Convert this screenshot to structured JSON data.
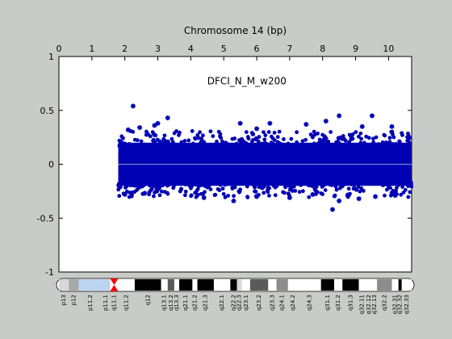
{
  "chart_data": {
    "type": "scatter",
    "title": "Chromosome 14 (bp)",
    "annotation": "DFCI_N_M_w200",
    "xlim": [
      0,
      10.7
    ],
    "ylim": [
      -1,
      1
    ],
    "x_ticks": [
      0,
      1,
      2,
      3,
      4,
      5,
      6,
      7,
      8,
      9,
      10
    ],
    "x_tick_labels": [
      "0",
      "1",
      "2",
      "3",
      "4",
      "5",
      "6",
      "7",
      "8",
      "9",
      "10"
    ],
    "y_ticks": [
      -1,
      -0.5,
      0,
      0.5,
      1
    ],
    "y_tick_labels": [
      "-1",
      "-0.5",
      "0",
      "0.5",
      "1"
    ],
    "grid": false,
    "colors": {
      "points": "#0000b4",
      "zero_line": "#7f9ec8",
      "background": "#c8ccc8",
      "plot_bg": "#ffffff",
      "centromere": "#ff0000",
      "stalk": "#bcd4f0"
    },
    "series": [
      {
        "data_start": 1.8,
        "data_end": 10.7,
        "core_band": [
          -0.2,
          0.2
        ],
        "outliers": [
          {
            "x": 2.25,
            "y": 0.54
          },
          {
            "x": 2.1,
            "y": 0.32
          },
          {
            "x": 2.45,
            "y": 0.34
          },
          {
            "x": 2.9,
            "y": 0.36
          },
          {
            "x": 3.0,
            "y": 0.38
          },
          {
            "x": 3.3,
            "y": 0.43
          },
          {
            "x": 5.5,
            "y": 0.38
          },
          {
            "x": 6.0,
            "y": 0.33
          },
          {
            "x": 6.4,
            "y": 0.38
          },
          {
            "x": 7.5,
            "y": 0.37
          },
          {
            "x": 8.1,
            "y": 0.4
          },
          {
            "x": 8.5,
            "y": 0.45
          },
          {
            "x": 9.2,
            "y": 0.35
          },
          {
            "x": 9.5,
            "y": 0.45
          },
          {
            "x": 10.1,
            "y": 0.35
          },
          {
            "x": 2.0,
            "y": -0.28
          },
          {
            "x": 2.6,
            "y": -0.27
          },
          {
            "x": 4.4,
            "y": -0.31
          },
          {
            "x": 5.3,
            "y": -0.34
          },
          {
            "x": 6.0,
            "y": -0.3
          },
          {
            "x": 7.0,
            "y": -0.31
          },
          {
            "x": 7.7,
            "y": -0.28
          },
          {
            "x": 8.3,
            "y": -0.42
          },
          {
            "x": 8.5,
            "y": -0.34
          },
          {
            "x": 9.1,
            "y": -0.32
          },
          {
            "x": 9.6,
            "y": -0.3
          },
          {
            "x": 10.2,
            "y": -0.29
          }
        ]
      }
    ],
    "ideogram": [
      {
        "label": "p13",
        "start": 0.0,
        "end": 0.3,
        "color": "#d8d8d8"
      },
      {
        "label": "p12",
        "start": 0.3,
        "end": 0.6,
        "color": "#a8a8a8"
      },
      {
        "label": "p11.2",
        "start": 0.6,
        "end": 1.3,
        "color": "#bcd4f0"
      },
      {
        "label": "p11.1",
        "start": 1.3,
        "end": 1.55,
        "color": "#bcd4f0"
      },
      {
        "label": "q11.1",
        "start": 1.55,
        "end": 1.8,
        "color": "#ff0000"
      },
      {
        "label": "q11.2",
        "start": 1.8,
        "end": 2.3,
        "color": "#ffffff"
      },
      {
        "label": "q12",
        "start": 2.3,
        "end": 3.1,
        "color": "#000000"
      },
      {
        "label": "q13.1",
        "start": 3.1,
        "end": 3.3,
        "color": "#ffffff"
      },
      {
        "label": "q13.2",
        "start": 3.3,
        "end": 3.5,
        "color": "#5a5a5a"
      },
      {
        "label": "q13.3",
        "start": 3.5,
        "end": 3.65,
        "color": "#ffffff"
      },
      {
        "label": "q21.1",
        "start": 3.65,
        "end": 4.05,
        "color": "#000000"
      },
      {
        "label": "q21.2",
        "start": 4.05,
        "end": 4.2,
        "color": "#ffffff"
      },
      {
        "label": "q21.3",
        "start": 4.2,
        "end": 4.7,
        "color": "#000000"
      },
      {
        "label": "q22.1",
        "start": 4.7,
        "end": 5.2,
        "color": "#ffffff"
      },
      {
        "label": "q22.2",
        "start": 5.2,
        "end": 5.4,
        "color": "#000000"
      },
      {
        "label": "q22.3",
        "start": 5.4,
        "end": 5.55,
        "color": "#d8d8d8"
      },
      {
        "label": "q23.1",
        "start": 5.55,
        "end": 5.8,
        "color": "#ffffff"
      },
      {
        "label": "q23.2",
        "start": 5.8,
        "end": 6.35,
        "color": "#5a5a5a"
      },
      {
        "label": "q23.3",
        "start": 6.35,
        "end": 6.6,
        "color": "#ffffff"
      },
      {
        "label": "q24.1",
        "start": 6.6,
        "end": 6.95,
        "color": "#8c8c8c"
      },
      {
        "label": "q24.2",
        "start": 6.95,
        "end": 7.25,
        "color": "#ffffff"
      },
      {
        "label": "q24.3",
        "start": 7.25,
        "end": 7.95,
        "color": "#ffffff"
      },
      {
        "label": "q31.1",
        "start": 7.95,
        "end": 8.35,
        "color": "#000000"
      },
      {
        "label": "q31.2",
        "start": 8.35,
        "end": 8.6,
        "color": "#ffffff"
      },
      {
        "label": "q31.3",
        "start": 8.6,
        "end": 9.1,
        "color": "#000000"
      },
      {
        "label": "q32.11",
        "start": 9.1,
        "end": 9.3,
        "color": "#ffffff"
      },
      {
        "label": "q32.12",
        "start": 9.3,
        "end": 9.5,
        "color": "#ffffff"
      },
      {
        "label": "q32.13",
        "start": 9.5,
        "end": 9.65,
        "color": "#ffffff"
      },
      {
        "label": "q32.2",
        "start": 9.65,
        "end": 10.1,
        "color": "#8c8c8c"
      },
      {
        "label": "q32.31",
        "start": 10.1,
        "end": 10.3,
        "color": "#ffffff"
      },
      {
        "label": "q32.32",
        "start": 10.3,
        "end": 10.4,
        "color": "#000000"
      },
      {
        "label": "q32.33",
        "start": 10.4,
        "end": 10.7,
        "color": "#ffffff"
      }
    ]
  }
}
